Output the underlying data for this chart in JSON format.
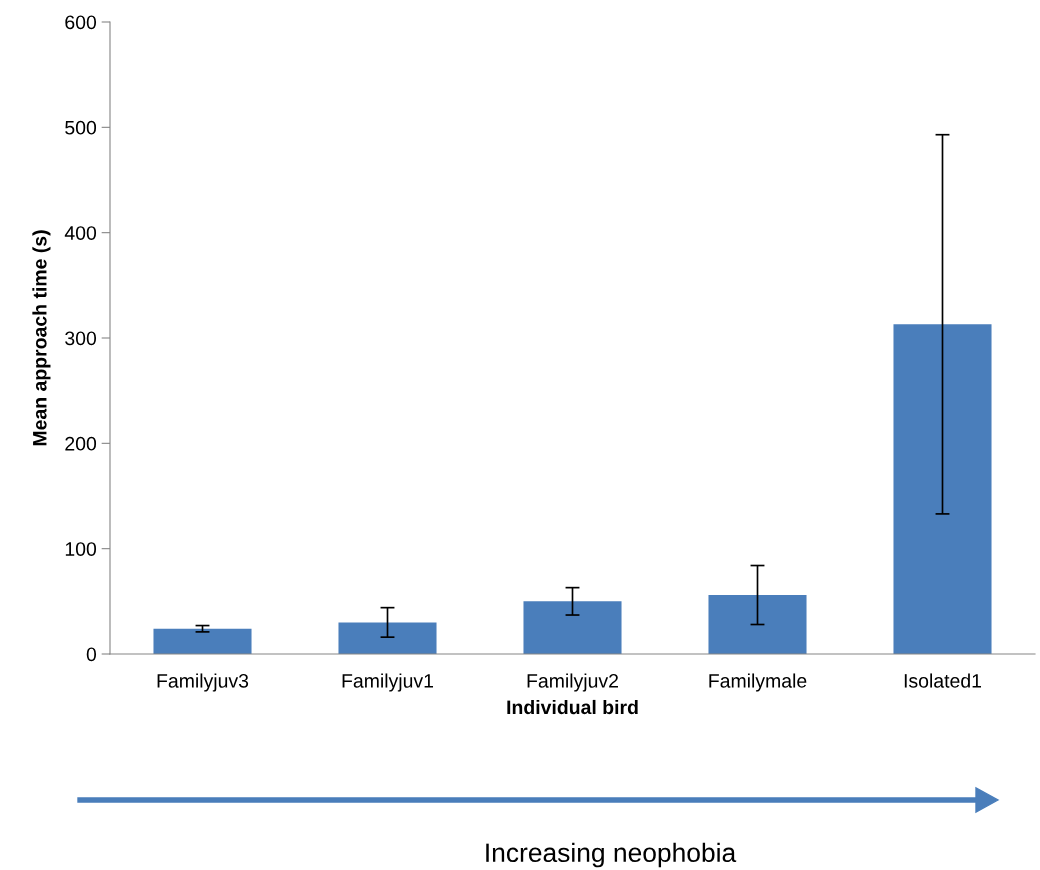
{
  "chart_data": {
    "type": "bar",
    "xlabel": "Individual bird",
    "ylabel": "Mean approach time (s)",
    "categories": [
      "Familyjuv3",
      "Familyjuv1",
      "Familyjuv2",
      "Familymale",
      "Isolated1"
    ],
    "values": [
      24,
      30,
      50,
      56,
      313
    ],
    "errors": [
      3,
      14,
      13,
      28,
      180
    ],
    "color": "#4a7ebb",
    "ylim": [
      0,
      600
    ],
    "yticks": [
      0,
      100,
      200,
      300,
      400,
      500,
      600
    ],
    "grid": false,
    "legend": false,
    "annotations": [
      "Increasing neophobia"
    ]
  }
}
